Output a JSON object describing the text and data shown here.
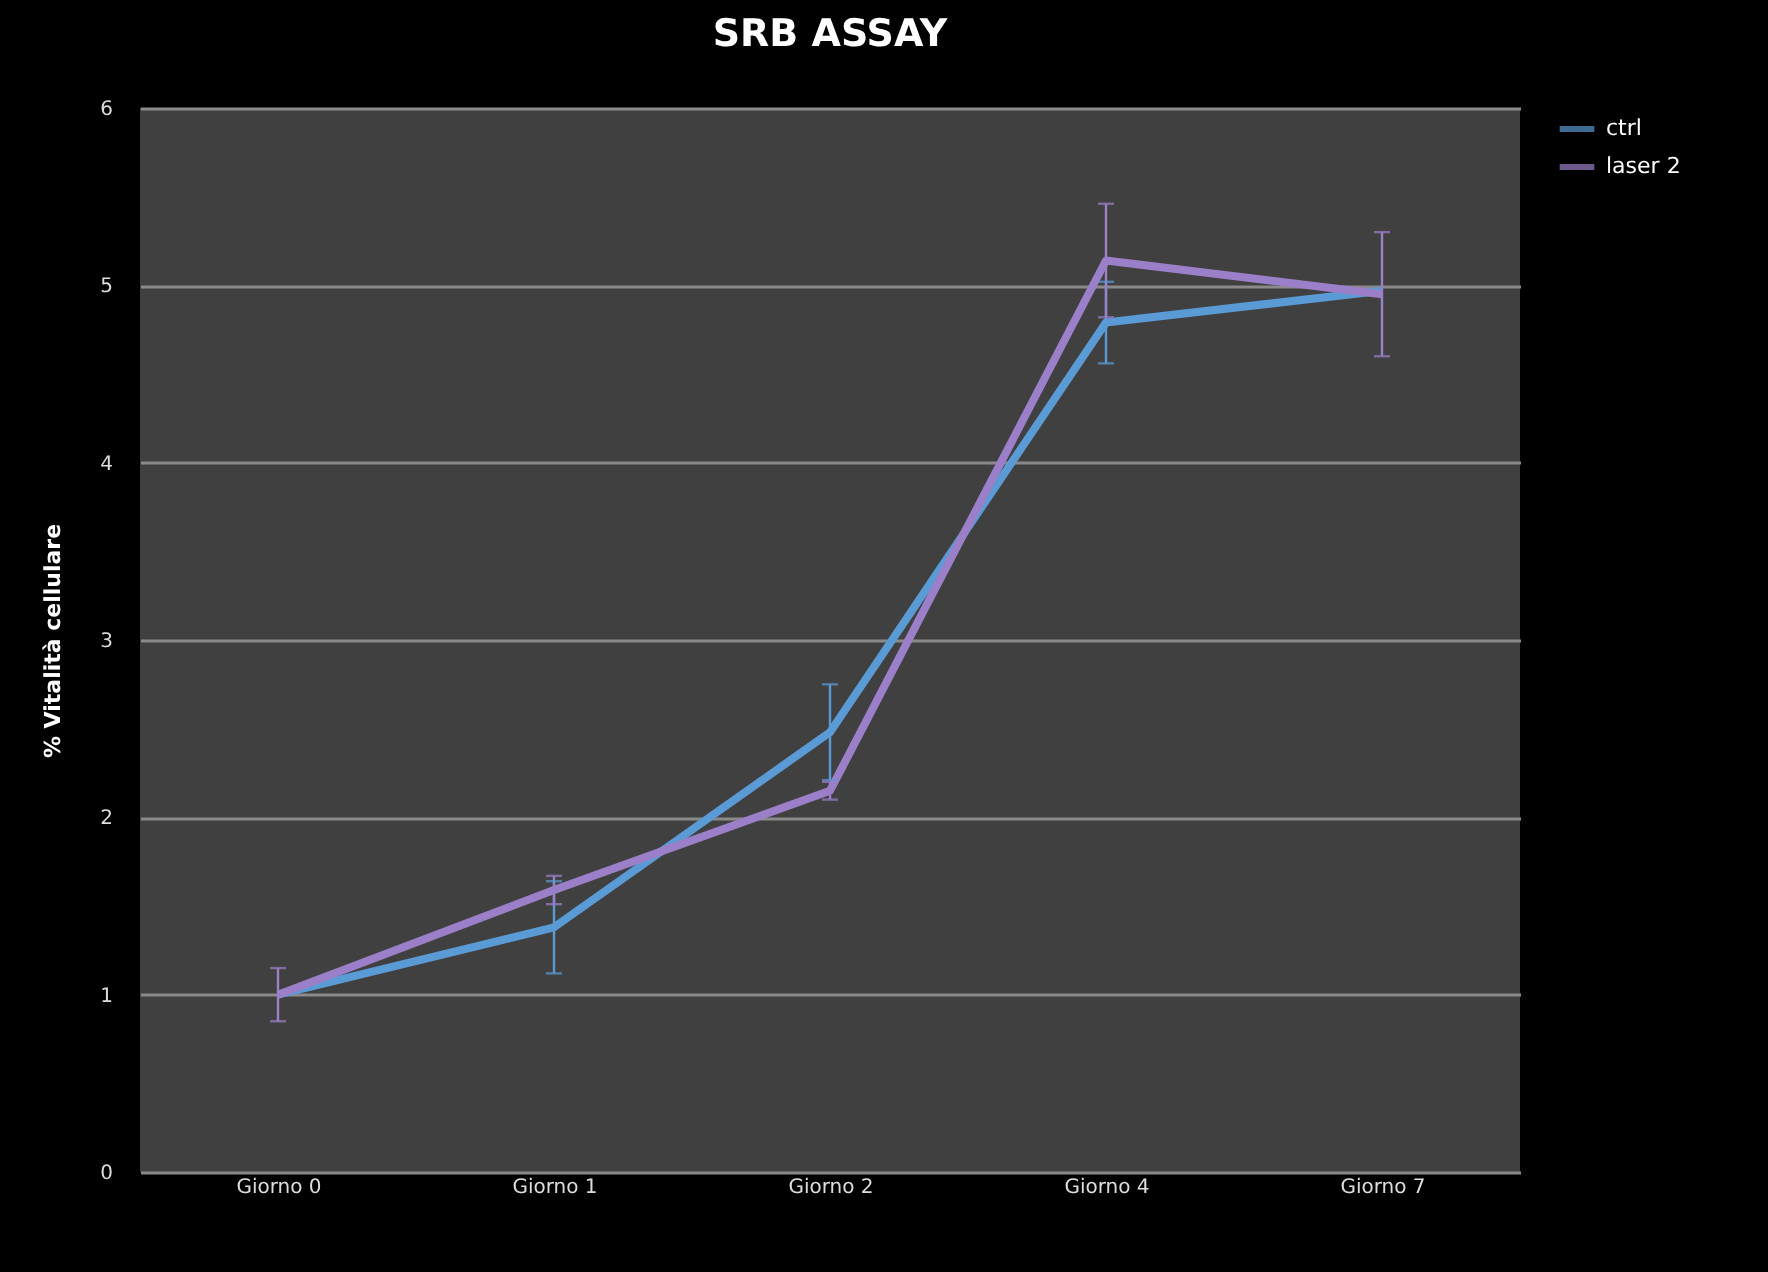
{
  "chart_data": {
    "type": "line",
    "title": "SRB ASSAY",
    "ylabel": "% Vitalità cellulare",
    "categories": [
      "Giorno 0",
      "Giorno 1",
      "Giorno 2",
      "Giorno 4",
      "Giorno 7"
    ],
    "series": [
      {
        "name": "ctrl",
        "color": "#5b9bd5",
        "values": [
          1.0,
          1.38,
          2.48,
          4.79,
          4.97
        ],
        "errors": [
          null,
          0.26,
          0.27,
          0.23,
          null
        ]
      },
      {
        "name": "laser 2",
        "color": "#9b7fc8",
        "values": [
          1.0,
          1.59,
          2.15,
          5.14,
          4.95
        ],
        "errors": [
          0.15,
          0.08,
          0.05,
          0.32,
          0.35
        ]
      }
    ],
    "ylim": [
      0,
      6
    ],
    "yticks": [
      0,
      1,
      2,
      3,
      4,
      5,
      6
    ],
    "grid": "y",
    "legend": "right",
    "line_style": "solid"
  }
}
